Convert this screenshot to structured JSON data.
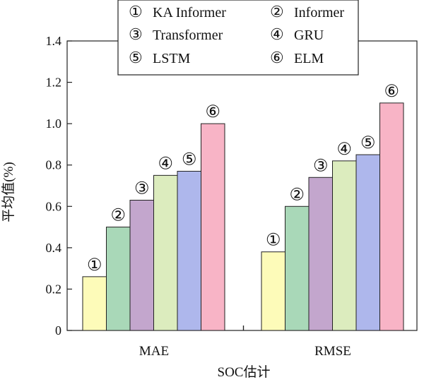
{
  "chart_data": {
    "type": "bar",
    "title": "",
    "xlabel": "SOC估计",
    "ylabel": "平均值(%)",
    "ylim": [
      0,
      1.4
    ],
    "yticks": [
      "0",
      "0.2",
      "0.4",
      "0.6",
      "0.8",
      "1.0",
      "1.2",
      "1.4"
    ],
    "categories": [
      "MAE",
      "RMSE"
    ],
    "grid": false,
    "legend_position": "top-center",
    "series": [
      {
        "marker": "①",
        "name": "KA Informer",
        "color": "#fdfbb9",
        "values": [
          0.26,
          0.38
        ]
      },
      {
        "marker": "②",
        "name": "Informer",
        "color": "#a9d8b8",
        "values": [
          0.5,
          0.6
        ]
      },
      {
        "marker": "③",
        "name": "Transformer",
        "color": "#c3a6cd",
        "values": [
          0.63,
          0.74
        ]
      },
      {
        "marker": "④",
        "name": "GRU",
        "color": "#dcecbe",
        "values": [
          0.75,
          0.82
        ]
      },
      {
        "marker": "⑤",
        "name": "LSTM",
        "color": "#aeb7ec",
        "values": [
          0.77,
          0.85
        ]
      },
      {
        "marker": "⑥",
        "name": "ELM",
        "color": "#f8b4c6",
        "values": [
          1.0,
          1.1
        ]
      }
    ]
  }
}
